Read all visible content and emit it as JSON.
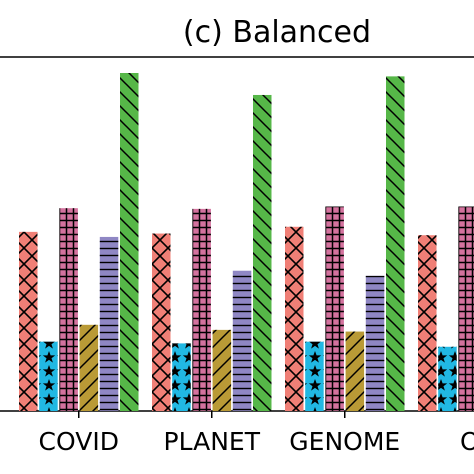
{
  "chart_data": {
    "type": "bar",
    "title": "(c) Balanced",
    "xlabel": "",
    "ylabel": "",
    "categories": [
      "COVID",
      "PLANET",
      "GENOME",
      "OS"
    ],
    "ylim": [
      0,
      1
    ],
    "grid": false,
    "legend": "none",
    "series": [
      {
        "color": "#f07f76",
        "pattern": "crosshatch-diagonal",
        "values": [
          0.53,
          0.525,
          0.545,
          0.52
        ]
      },
      {
        "color": "#21b8e3",
        "pattern": "stars",
        "values": [
          0.205,
          0.2,
          0.205,
          0.19
        ]
      },
      {
        "color": "#d4729e",
        "pattern": "grid",
        "values": [
          0.6,
          0.598,
          0.605,
          0.605
        ]
      },
      {
        "color": "#b99a36",
        "pattern": "diagonal-forward",
        "values": [
          0.255,
          0.24,
          0.235,
          null
        ]
      },
      {
        "color": "#8f87c4",
        "pattern": "horizontal",
        "values": [
          0.515,
          0.415,
          0.4,
          null
        ]
      },
      {
        "color": "#56b748",
        "pattern": "diagonal-backward",
        "values": [
          1.0,
          0.935,
          0.99,
          null
        ]
      }
    ]
  }
}
